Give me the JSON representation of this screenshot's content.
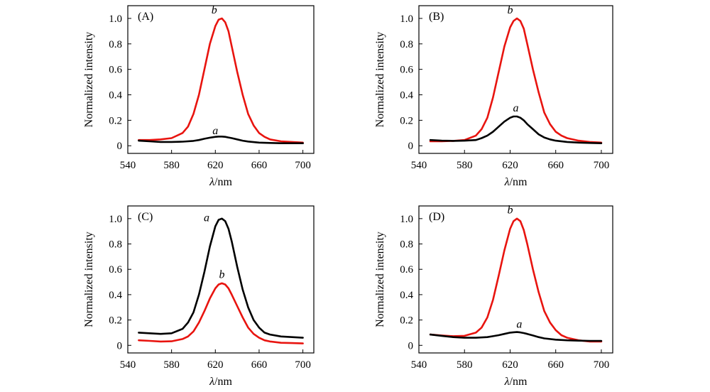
{
  "chart_data": [
    {
      "type": "line",
      "panel": "(A)",
      "xlabel_symbol": "λ",
      "xlabel_unit": "/nm",
      "ylabel": "Normalized intensity",
      "xlim": [
        540,
        710
      ],
      "ylim": [
        -0.06,
        1.1
      ],
      "xticks": [
        540,
        580,
        620,
        660,
        700
      ],
      "yticks": [
        0,
        0.2,
        0.4,
        0.6,
        0.8,
        1.0
      ],
      "ytick_labels": [
        "0",
        "0.2",
        "0.4",
        "0.6",
        "0.8",
        "1.0"
      ],
      "series": [
        {
          "name": "a",
          "color": "#000000",
          "x": [
            550,
            560,
            570,
            580,
            590,
            600,
            605,
            610,
            615,
            620,
            623,
            626,
            629,
            632,
            635,
            640,
            645,
            650,
            660,
            670,
            680,
            690,
            700
          ],
          "y": [
            0.04,
            0.035,
            0.03,
            0.03,
            0.032,
            0.038,
            0.045,
            0.055,
            0.063,
            0.07,
            0.072,
            0.072,
            0.07,
            0.065,
            0.06,
            0.05,
            0.04,
            0.033,
            0.025,
            0.022,
            0.02,
            0.02,
            0.02
          ]
        },
        {
          "name": "b",
          "color": "#e8140f",
          "x": [
            550,
            560,
            570,
            580,
            590,
            595,
            600,
            605,
            610,
            615,
            620,
            623,
            626,
            629,
            632,
            635,
            640,
            645,
            650,
            655,
            660,
            665,
            670,
            680,
            690,
            700
          ],
          "y": [
            0.045,
            0.045,
            0.05,
            0.06,
            0.1,
            0.15,
            0.25,
            0.4,
            0.6,
            0.8,
            0.94,
            0.99,
            1.0,
            0.97,
            0.9,
            0.78,
            0.58,
            0.4,
            0.25,
            0.16,
            0.1,
            0.07,
            0.05,
            0.035,
            0.03,
            0.025
          ]
        }
      ],
      "annotations": [
        {
          "text": "a",
          "x": 620,
          "y": 0.09
        },
        {
          "text": "b",
          "x": 619,
          "y": 1.04
        }
      ]
    },
    {
      "type": "line",
      "panel": "(B)",
      "xlabel_symbol": "λ",
      "xlabel_unit": "/nm",
      "ylabel": "Normalized intensity",
      "xlim": [
        540,
        710
      ],
      "ylim": [
        -0.06,
        1.1
      ],
      "xticks": [
        540,
        580,
        620,
        660,
        700
      ],
      "yticks": [
        0,
        0.2,
        0.4,
        0.6,
        0.8,
        1.0
      ],
      "ytick_labels": [
        "0",
        "0.2",
        "0.4",
        "0.6",
        "0.8",
        "1.0"
      ],
      "series": [
        {
          "name": "a",
          "color": "#000000",
          "x": [
            550,
            560,
            570,
            580,
            590,
            595,
            600,
            605,
            610,
            615,
            620,
            623,
            626,
            629,
            632,
            635,
            640,
            645,
            650,
            655,
            660,
            670,
            680,
            690,
            700
          ],
          "y": [
            0.045,
            0.04,
            0.038,
            0.04,
            0.045,
            0.06,
            0.08,
            0.11,
            0.15,
            0.19,
            0.22,
            0.23,
            0.23,
            0.22,
            0.2,
            0.17,
            0.13,
            0.09,
            0.065,
            0.05,
            0.04,
            0.03,
            0.025,
            0.022,
            0.02
          ]
        },
        {
          "name": "b",
          "color": "#e8140f",
          "x": [
            550,
            560,
            570,
            580,
            590,
            595,
            600,
            605,
            610,
            615,
            620,
            623,
            626,
            629,
            632,
            635,
            640,
            645,
            650,
            655,
            660,
            665,
            670,
            680,
            690,
            700
          ],
          "y": [
            0.035,
            0.035,
            0.038,
            0.045,
            0.08,
            0.13,
            0.22,
            0.38,
            0.58,
            0.78,
            0.93,
            0.98,
            1.0,
            0.98,
            0.92,
            0.8,
            0.6,
            0.42,
            0.26,
            0.17,
            0.11,
            0.08,
            0.06,
            0.04,
            0.03,
            0.025
          ]
        }
      ],
      "annotations": [
        {
          "text": "a",
          "x": 625,
          "y": 0.27
        },
        {
          "text": "b",
          "x": 620,
          "y": 1.04
        }
      ]
    },
    {
      "type": "line",
      "panel": "(C)",
      "xlabel_symbol": "λ",
      "xlabel_unit": "/nm",
      "ylabel": "Normalized intensity",
      "xlim": [
        540,
        710
      ],
      "ylim": [
        -0.06,
        1.1
      ],
      "xticks": [
        540,
        580,
        620,
        660,
        700
      ],
      "yticks": [
        0,
        0.2,
        0.4,
        0.6,
        0.8,
        1.0
      ],
      "ytick_labels": [
        "0",
        "0.2",
        "0.4",
        "0.6",
        "0.8",
        "1.0"
      ],
      "series": [
        {
          "name": "a",
          "color": "#000000",
          "x": [
            550,
            560,
            570,
            580,
            590,
            595,
            600,
            605,
            610,
            615,
            620,
            623,
            626,
            629,
            632,
            635,
            640,
            645,
            650,
            655,
            660,
            665,
            670,
            680,
            690,
            700
          ],
          "y": [
            0.1,
            0.095,
            0.09,
            0.095,
            0.13,
            0.18,
            0.26,
            0.4,
            0.58,
            0.78,
            0.94,
            0.99,
            1.0,
            0.98,
            0.92,
            0.82,
            0.62,
            0.44,
            0.3,
            0.2,
            0.14,
            0.1,
            0.085,
            0.07,
            0.065,
            0.06
          ]
        },
        {
          "name": "b",
          "color": "#e8140f",
          "x": [
            550,
            560,
            570,
            580,
            590,
            595,
            600,
            605,
            610,
            615,
            620,
            623,
            626,
            629,
            632,
            635,
            640,
            645,
            650,
            655,
            660,
            665,
            670,
            680,
            690,
            700
          ],
          "y": [
            0.04,
            0.035,
            0.03,
            0.032,
            0.05,
            0.07,
            0.11,
            0.18,
            0.27,
            0.37,
            0.45,
            0.48,
            0.49,
            0.48,
            0.45,
            0.4,
            0.31,
            0.22,
            0.14,
            0.09,
            0.06,
            0.04,
            0.03,
            0.02,
            0.018,
            0.015
          ]
        }
      ],
      "annotations": [
        {
          "text": "a",
          "x": 612,
          "y": 0.98
        },
        {
          "text": "b",
          "x": 626,
          "y": 0.53
        }
      ]
    },
    {
      "type": "line",
      "panel": "(D)",
      "xlabel_symbol": "λ",
      "xlabel_unit": "/nm",
      "ylabel": "Normalized intensity",
      "xlim": [
        540,
        710
      ],
      "ylim": [
        -0.06,
        1.1
      ],
      "xticks": [
        540,
        580,
        620,
        660,
        700
      ],
      "yticks": [
        0,
        0.2,
        0.4,
        0.6,
        0.8,
        1.0
      ],
      "ytick_labels": [
        "0",
        "0.2",
        "0.4",
        "0.6",
        "0.8",
        "1.0"
      ],
      "series": [
        {
          "name": "a",
          "color": "#000000",
          "x": [
            550,
            560,
            570,
            580,
            590,
            600,
            605,
            610,
            615,
            620,
            623,
            626,
            629,
            632,
            635,
            640,
            645,
            650,
            660,
            670,
            680,
            690,
            700
          ],
          "y": [
            0.085,
            0.075,
            0.065,
            0.06,
            0.06,
            0.065,
            0.072,
            0.08,
            0.09,
            0.1,
            0.103,
            0.105,
            0.102,
            0.097,
            0.09,
            0.078,
            0.065,
            0.055,
            0.045,
            0.04,
            0.037,
            0.035,
            0.035
          ]
        },
        {
          "name": "b",
          "color": "#e8140f",
          "x": [
            550,
            560,
            570,
            580,
            590,
            595,
            600,
            605,
            610,
            615,
            620,
            623,
            626,
            629,
            632,
            635,
            640,
            645,
            650,
            655,
            660,
            665,
            670,
            680,
            690,
            700
          ],
          "y": [
            0.085,
            0.078,
            0.072,
            0.075,
            0.1,
            0.14,
            0.22,
            0.36,
            0.55,
            0.75,
            0.92,
            0.98,
            1.0,
            0.98,
            0.91,
            0.8,
            0.6,
            0.42,
            0.27,
            0.18,
            0.12,
            0.08,
            0.06,
            0.04,
            0.03,
            0.03
          ]
        }
      ],
      "annotations": [
        {
          "text": "a",
          "x": 628,
          "y": 0.14
        },
        {
          "text": "b",
          "x": 620,
          "y": 1.04
        }
      ]
    }
  ]
}
